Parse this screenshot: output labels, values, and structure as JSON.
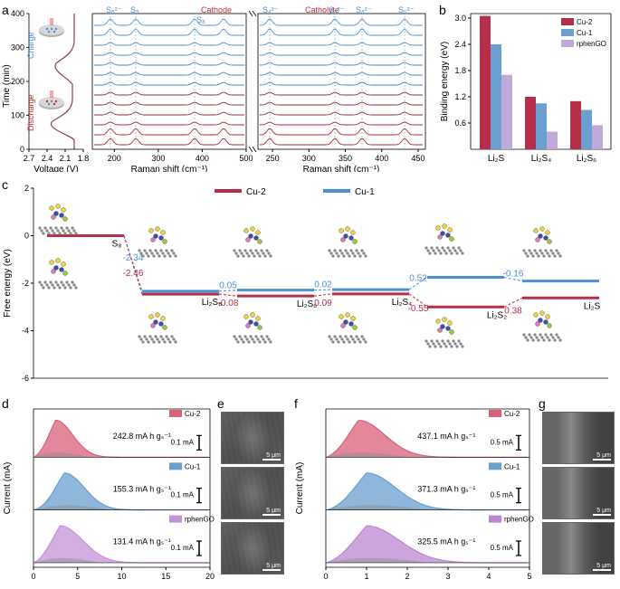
{
  "panelA": {
    "label": "a",
    "ylabel": "Time (min)",
    "xlabel_left": "Voltage (V)",
    "xlabel_mid": "Raman shift (cm⁻¹)",
    "xlabel_right": "Raman shift (cm⁻¹)",
    "yticks": [
      0,
      100,
      200,
      300,
      400
    ],
    "xticks_left": [
      2.7,
      2.4,
      2.1,
      1.8
    ],
    "xticks_mid": [
      200,
      300,
      400,
      500
    ],
    "xticks_right": [
      250,
      300,
      350,
      400,
      450
    ],
    "charge_label": "Charge",
    "discharge_label": "Discharge",
    "cathode_label": "Cathode",
    "catholyte_label": "Catholyte",
    "species_mid": [
      "S₈²⁻",
      "S₈",
      "S₈"
    ],
    "species_right": [
      "S₄²⁻",
      "S₈²⁻",
      "S₈²⁻",
      "S₆²⁻"
    ],
    "charge_color": "#4a90d9",
    "discharge_color": "#c23030"
  },
  "panelB": {
    "label": "b",
    "ylabel": "Binding energy (eV)",
    "xlabels": [
      "Li₂S",
      "Li₂S₄",
      "Li₂S₆"
    ],
    "yticks": [
      0.6,
      1.2,
      1.8,
      2.4,
      3.0
    ],
    "series": [
      {
        "name": "Cu-2",
        "color": "#b4304a",
        "values": [
          3.05,
          1.2,
          1.1
        ]
      },
      {
        "name": "Cu-1",
        "color": "#6a9fcf",
        "values": [
          2.4,
          1.05,
          0.9
        ]
      },
      {
        "name": "rphenGO",
        "color": "#c0a8d8",
        "values": [
          1.7,
          0.4,
          0.55
        ]
      }
    ]
  },
  "panelC": {
    "label": "c",
    "ylabel": "Free energy (eV)",
    "yticks": [
      -6,
      -4,
      -2,
      0,
      2
    ],
    "legend": [
      {
        "name": "Cu-2",
        "color": "#b4304a"
      },
      {
        "name": "Cu-1",
        "color": "#4a90d9"
      }
    ],
    "stages": [
      "S₈",
      "Li₂S₈",
      "Li₂S₆",
      "Li₂S₄",
      "Li₂S₂",
      "Li₂S"
    ],
    "cu2_energies": [
      0,
      -2.46,
      -2.54,
      -2.45,
      -3.0,
      -2.62
    ],
    "cu1_energies": [
      0,
      -2.34,
      -2.29,
      -2.27,
      -1.75,
      -1.91
    ],
    "cu2_deltas": [
      "-2.46",
      "-0.08",
      "0.09",
      "-0.55",
      "0.38"
    ],
    "cu1_deltas": [
      "-2.34",
      "0.05",
      "0.02",
      "0.52",
      "-0.16"
    ]
  },
  "panelD": {
    "label": "d",
    "ylabel": "Current (mA)",
    "xlabel": "Time (10³s)",
    "xticks": [
      0,
      5,
      10,
      15,
      20
    ],
    "scale_marker": "0.1 mA",
    "series": [
      {
        "name": "Cu-2",
        "color": "#d9607a",
        "capacity": "242.8 mA h gₛ⁻¹",
        "peak": 2.5,
        "width": 6
      },
      {
        "name": "Cu-1",
        "color": "#6a9fcf",
        "capacity": "155.3 mA h gₛ⁻¹",
        "peak": 3.5,
        "width": 7
      },
      {
        "name": "rphenGO",
        "color": "#c493d6",
        "capacity": "131.4 mA h gₛ⁻¹",
        "peak": 3,
        "width": 8
      }
    ]
  },
  "panelE": {
    "label": "e",
    "scale": "5 μm"
  },
  "panelF": {
    "label": "f",
    "ylabel": "Current (mA)",
    "xlabel": "Time (10³s)",
    "xticks": [
      0,
      1,
      2,
      3,
      4,
      5
    ],
    "scale_marker": "0.5 mA",
    "series": [
      {
        "name": "Cu-2",
        "color": "#d9607a",
        "capacity": "437.1 mA h gₛ⁻¹",
        "peak": 0.8,
        "width": 2
      },
      {
        "name": "Cu-1",
        "color": "#6a9fcf",
        "capacity": "371.3 mA h gₛ⁻¹",
        "peak": 1.0,
        "width": 2.2
      },
      {
        "name": "rphenGO",
        "color": "#bb87d0",
        "capacity": "325.5 mA h gₛ⁻¹",
        "peak": 1.0,
        "width": 2.5
      }
    ]
  },
  "panelG": {
    "label": "g",
    "scale": "5 μm"
  }
}
